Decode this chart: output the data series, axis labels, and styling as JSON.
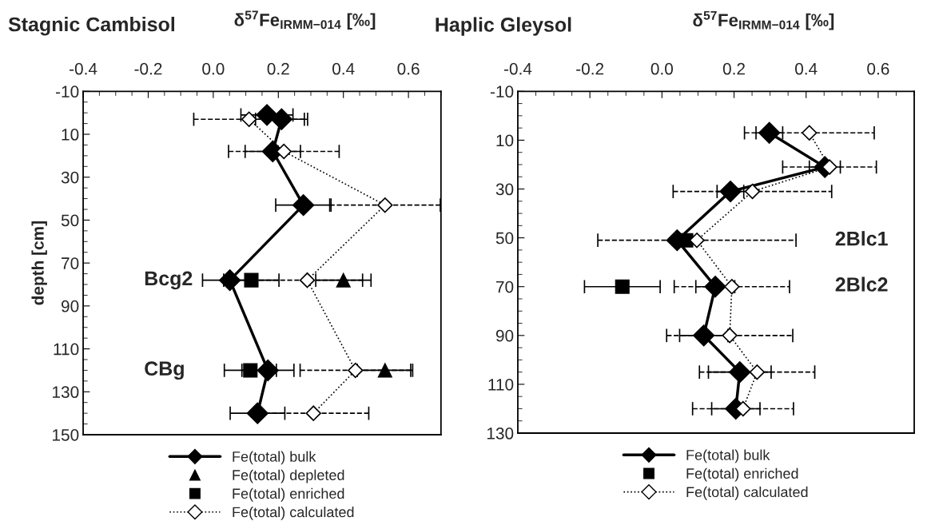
{
  "chart_data": [
    {
      "type": "line",
      "title": "Stagnic Cambisol",
      "xlabel": "δ$^{57}$Fe$_{IRMM−014}$ [‰]",
      "ylabel": "depth [cm]",
      "xlim": [
        -0.4,
        0.7
      ],
      "xticks": [
        -0.4,
        -0.2,
        {
          "value": 0,
          "label": "0.0"
        },
        0.2,
        0.4,
        0.6
      ],
      "ylim": [
        150,
        -10
      ],
      "yticks": [
        -10,
        10,
        30,
        50,
        70,
        90,
        110,
        130,
        150
      ],
      "legend": "bottom",
      "annotations": [
        "Bcg2",
        "CBg"
      ],
      "series": [
        {
          "name": "Fe(total) bulk",
          "color": "#000000",
          "marker": "diamond",
          "line_style": "solid",
          "x": [
            0.165,
            0.21,
            0.183,
            0.277,
            0.051,
            0.168,
            0.136
          ],
          "values": [
            1,
            3,
            18,
            43,
            78,
            120,
            140
          ],
          "xerrors": [
            0.08,
            0.08,
            0.085,
            0.085,
            0.084,
            0.08,
            0.084
          ]
        },
        {
          "name": "Fe(total) depleted",
          "type": "scatter",
          "color": "#000000",
          "marker": "triangle",
          "x": [
            0.4,
            0.528
          ],
          "values": [
            78,
            120
          ],
          "xerrors": [
            0.085,
            0.085
          ]
        },
        {
          "name": "Fe(total) enriched",
          "type": "scatter",
          "color": "#000000",
          "marker": "square",
          "x": [
            0.117,
            0.114
          ],
          "values": [
            78,
            120
          ],
          "xerrors": [
            0.085,
            0.08
          ]
        },
        {
          "name": "Fe(total) calculated",
          "color": "#000000",
          "marker": "diamond",
          "line_style": "dotted",
          "x": [
            0.11,
            0.217,
            0.528,
            0.289,
            0.437,
            0.308
          ],
          "values": [
            3,
            18,
            43,
            78,
            120,
            140
          ],
          "xerrors": [
            0.17,
            0.17,
            0.17,
            0.17,
            0.17,
            0.17
          ]
        }
      ]
    },
    {
      "type": "line",
      "title": "Haplic Gleysol",
      "xlabel": "δ$^{57}$Fe$_{IRMM−014}$ [‰]",
      "xlim": [
        -0.4,
        0.7
      ],
      "xticks": [
        -0.4,
        -0.2,
        {
          "value": 0,
          "label": "0.0"
        },
        0.2,
        0.4,
        0.6
      ],
      "ylim": [
        130,
        -10
      ],
      "yticks": [
        -10,
        10,
        30,
        50,
        70,
        90,
        110,
        130
      ],
      "legend": "bottom",
      "annotations": [
        "2Blc1",
        "2Blc2"
      ],
      "series": [
        {
          "name": "Fe(total) bulk",
          "color": "#000000",
          "marker": "diamond",
          "line_style": "solid",
          "x": [
            0.298,
            0.452,
            0.19,
            0.042,
            0.148,
            0.116,
            0.216,
            0.205
          ],
          "values": [
            7,
            21,
            31,
            51,
            70,
            90,
            105,
            120
          ],
          "xerrors": [
            0.037,
            0.043,
            0.037,
            null,
            0.054,
            0.067,
            0.087,
            0.067
          ]
        },
        {
          "name": "Fe(total) enriched",
          "type": "scatter",
          "color": "#000000",
          "marker": "square",
          "x": [
            0.067,
            -0.11
          ],
          "values": [
            51,
            70
          ],
          "xerrors": [
            null,
            0.105
          ]
        },
        {
          "name": "Fe(total) calculated",
          "color": "#000000",
          "marker": "diamond",
          "line_style": "dotted",
          "x": [
            0.409,
            0.465,
            0.251,
            0.097,
            0.194,
            0.188,
            0.264,
            0.225
          ],
          "values": [
            7,
            21,
            31,
            51,
            70,
            90,
            105,
            120
          ],
          "xerrors": [
            0.18,
            0.13,
            0.22,
            0.275,
            0.16,
            0.175,
            0.16,
            0.14
          ]
        }
      ]
    }
  ]
}
